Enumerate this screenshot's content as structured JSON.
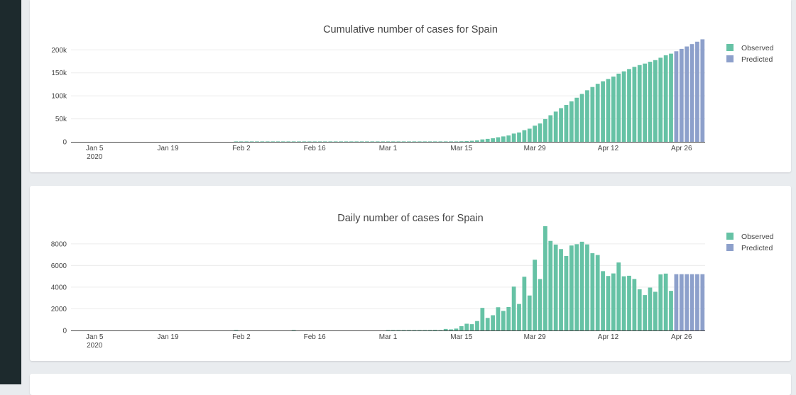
{
  "colors": {
    "observed": "#66c2a5",
    "predicted": "#8da0cb"
  },
  "chart_data": [
    {
      "type": "bar",
      "title": "Cumulative number of cases for Spain",
      "x_start": "2020-01-01",
      "x_ticks": [
        "Jan 5",
        "Jan 19",
        "Feb 2",
        "Feb 16",
        "Mar 1",
        "Mar 15",
        "Mar 29",
        "Apr 12",
        "Apr 26"
      ],
      "x_year": "2020",
      "y_ticks": [
        "0",
        "50k",
        "100k",
        "150k",
        "200k"
      ],
      "ylim": [
        0,
        222000
      ],
      "legend": [
        {
          "label": "Observed",
          "color": "#66c2a5"
        },
        {
          "label": "Predicted",
          "color": "#8da0cb"
        }
      ],
      "legend_position": "top-right",
      "series": [
        {
          "name": "Observed",
          "values": [
            0,
            0,
            0,
            0,
            0,
            0,
            0,
            0,
            0,
            0,
            0,
            0,
            0,
            0,
            0,
            0,
            0,
            0,
            0,
            0,
            0,
            0,
            0,
            0,
            0,
            0,
            0,
            0,
            0,
            0,
            0,
            1,
            1,
            1,
            1,
            1,
            1,
            1,
            1,
            1,
            1,
            1,
            2,
            2,
            2,
            2,
            2,
            2,
            2,
            2,
            2,
            2,
            2,
            2,
            2,
            2,
            2,
            2,
            2,
            2,
            3,
            4,
            7,
            15,
            32,
            45,
            84,
            120,
            165,
            228,
            282,
            401,
            525,
            674,
            1231,
            1695,
            2277,
            3146,
            5232,
            6391,
            7798,
            9942,
            11748,
            13910,
            17963,
            20410,
            25374,
            28603,
            35136,
            39885,
            49515,
            57786,
            65719,
            73235,
            80110,
            87956,
            95923,
            104118,
            112065,
            119199,
            126168,
            131646,
            136675,
            141942,
            148220,
            153222,
            158273,
            163027,
            166831,
            170099,
            174060,
            177633,
            182816,
            188068,
            191726
          ],
          "color": "#66c2a5"
        },
        {
          "name": "Predicted",
          "values": [
            196900,
            202100,
            207300,
            212500,
            217700,
            222900
          ],
          "color": "#8da0cb"
        }
      ]
    },
    {
      "type": "bar",
      "title": "Daily number of cases for Spain",
      "x_start": "2020-01-01",
      "x_ticks": [
        "Jan 5",
        "Jan 19",
        "Feb 2",
        "Feb 16",
        "Mar 1",
        "Mar 15",
        "Mar 29",
        "Apr 12",
        "Apr 26"
      ],
      "x_year": "2020",
      "y_ticks": [
        "0",
        "2000",
        "4000",
        "6000",
        "8000"
      ],
      "ylim": [
        0,
        9300
      ],
      "legend": [
        {
          "label": "Observed",
          "color": "#66c2a5"
        },
        {
          "label": "Predicted",
          "color": "#8da0cb"
        }
      ],
      "legend_position": "top-right",
      "series": [
        {
          "name": "Observed",
          "values": [
            0,
            0,
            0,
            0,
            0,
            0,
            0,
            0,
            0,
            0,
            0,
            0,
            0,
            0,
            0,
            0,
            0,
            0,
            0,
            0,
            0,
            0,
            0,
            0,
            0,
            0,
            0,
            0,
            0,
            0,
            0,
            1,
            0,
            0,
            0,
            0,
            0,
            0,
            0,
            0,
            0,
            0,
            1,
            0,
            0,
            0,
            0,
            0,
            0,
            0,
            0,
            0,
            0,
            0,
            0,
            0,
            0,
            0,
            0,
            0,
            1,
            1,
            3,
            8,
            17,
            13,
            39,
            36,
            45,
            57,
            37,
            141,
            100,
            173,
            400,
            622,
            582,
            869,
            2086,
            1159,
            1407,
            2144,
            1806,
            2162,
            4053,
            2447,
            4964,
            3229,
            6533,
            4749,
            9630,
            8271,
            7933,
            7516,
            6875,
            7846,
            7967,
            8195,
            7947,
            7134,
            6969,
            5478,
            5029,
            5267,
            6278,
            5002,
            5051,
            4754,
            3804,
            3268,
            3961,
            3573,
            5183,
            5252,
            3658
          ],
          "color": "#66c2a5"
        },
        {
          "name": "Predicted",
          "values": [
            5200,
            5200,
            5200,
            5200,
            5200,
            5200
          ],
          "color": "#8da0cb"
        }
      ]
    }
  ]
}
